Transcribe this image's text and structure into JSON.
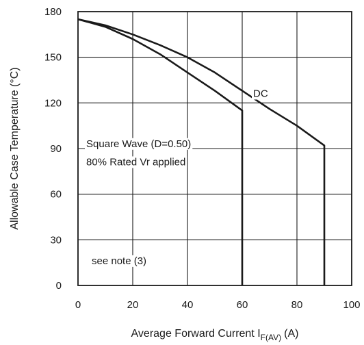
{
  "chart_data": {
    "type": "line",
    "xlabel": "Average Forward Current I",
    "xlabel_sub": "F(AV)",
    "xlabel_unit": "(A)",
    "ylabel": "Allowable Case Temperature (°C)",
    "xlim": [
      0,
      100
    ],
    "ylim": [
      0,
      180
    ],
    "xticks": [
      0,
      20,
      40,
      60,
      80,
      100
    ],
    "yticks": [
      0,
      30,
      60,
      90,
      120,
      150,
      180
    ],
    "grid": true,
    "series": [
      {
        "name": "DC",
        "x": [
          0,
          10,
          20,
          30,
          40,
          50,
          60,
          70,
          80,
          90,
          90
        ],
        "y": [
          175,
          171,
          165,
          158,
          150,
          140,
          128,
          116,
          105,
          92,
          0
        ]
      },
      {
        "name": "Square Wave (D=0.50)",
        "x": [
          0,
          10,
          20,
          30,
          40,
          50,
          60,
          60
        ],
        "y": [
          175,
          170,
          162,
          152,
          140,
          128,
          115,
          0
        ]
      }
    ],
    "annotations": [
      {
        "text": "Square Wave (D=0.50)",
        "x": 3,
        "y": 91
      },
      {
        "text": "80% Rated Vr applied",
        "x": 3,
        "y": 79
      },
      {
        "text": "DC",
        "x": 64,
        "y": 124
      },
      {
        "text": "see note (3)",
        "x": 5,
        "y": 14
      }
    ]
  }
}
